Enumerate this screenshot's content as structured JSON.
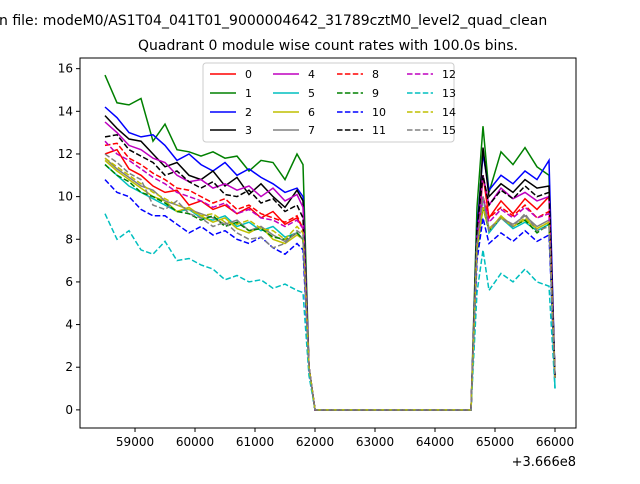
{
  "suptitle": "n file: modeM0/AS1T04_041T01_9000004642_31789cztM0_level2_quad_clean",
  "chart_data": {
    "type": "line",
    "title": "Quadrant 0 module wise count rates with 100.0s bins.",
    "xlabel": "",
    "ylabel": "",
    "x_offset_label": "+3.666e8",
    "xlim": [
      58083,
      66350
    ],
    "ylim": [
      -0.85,
      16.5
    ],
    "xticks": [
      59000,
      60000,
      61000,
      62000,
      63000,
      64000,
      65000,
      66000
    ],
    "yticks": [
      0,
      2,
      4,
      6,
      8,
      10,
      12,
      14,
      16
    ],
    "legend_placement": "top-center",
    "x": [
      58500,
      58700,
      58900,
      59100,
      59300,
      59500,
      59700,
      59900,
      60100,
      60300,
      60500,
      60700,
      60900,
      61100,
      61300,
      61500,
      61700,
      61800,
      61900,
      62000,
      64600,
      64700,
      64800,
      64900,
      65100,
      65300,
      65500,
      65700,
      65900,
      66000
    ],
    "series": [
      {
        "name": "0",
        "color": "#ff0000",
        "dash": false,
        "values": [
          12.0,
          12.2,
          11.3,
          11.0,
          10.5,
          10.2,
          10.3,
          9.6,
          9.8,
          9.4,
          9.6,
          9.2,
          9.5,
          9.0,
          9.3,
          8.7,
          9.0,
          8.5,
          2.0,
          0,
          0,
          7.5,
          11.0,
          9.0,
          9.8,
          9.2,
          9.9,
          9.4,
          10.0,
          1.5
        ]
      },
      {
        "name": "1",
        "color": "#008000",
        "dash": false,
        "values": [
          15.7,
          14.4,
          14.3,
          14.6,
          12.6,
          13.4,
          12.2,
          12.1,
          11.9,
          12.1,
          11.8,
          11.9,
          11.2,
          11.7,
          11.6,
          10.8,
          12.0,
          11.5,
          2.0,
          0,
          0,
          9.5,
          13.3,
          10.2,
          12.1,
          11.5,
          12.3,
          11.4,
          11.0,
          1.5
        ]
      },
      {
        "name": "2",
        "color": "#0000ff",
        "dash": false,
        "values": [
          14.2,
          13.7,
          13.0,
          12.8,
          12.9,
          12.4,
          11.7,
          12.0,
          11.5,
          11.2,
          11.6,
          11.0,
          11.3,
          10.9,
          10.6,
          10.2,
          10.4,
          10.0,
          2.0,
          0,
          0,
          8.5,
          12.0,
          10.3,
          11.0,
          10.6,
          11.2,
          10.8,
          11.7,
          1.5
        ]
      },
      {
        "name": "3",
        "color": "#000000",
        "dash": false,
        "values": [
          13.8,
          13.2,
          12.7,
          12.6,
          12.0,
          11.4,
          11.6,
          11.0,
          10.8,
          11.2,
          10.5,
          10.9,
          10.1,
          10.6,
          10.0,
          9.5,
          10.3,
          9.8,
          2.0,
          0,
          0,
          8.0,
          12.3,
          10.0,
          10.6,
          10.2,
          10.8,
          10.4,
          10.5,
          1.5
        ]
      },
      {
        "name": "4",
        "color": "#bf00bf",
        "dash": false,
        "values": [
          13.5,
          13.0,
          12.4,
          12.2,
          11.8,
          11.6,
          11.0,
          10.7,
          10.8,
          10.4,
          10.6,
          10.3,
          10.5,
          10.0,
          10.4,
          9.8,
          10.1,
          9.5,
          2.0,
          0,
          0,
          8.0,
          11.0,
          9.6,
          10.4,
          9.9,
          10.2,
          9.8,
          10.0,
          1.5
        ]
      },
      {
        "name": "5",
        "color": "#00bfbf",
        "dash": false,
        "values": [
          11.5,
          11.0,
          10.5,
          10.2,
          9.9,
          9.6,
          9.3,
          9.4,
          9.0,
          8.9,
          9.1,
          8.6,
          8.8,
          8.4,
          8.6,
          8.1,
          8.3,
          8.0,
          2.0,
          0,
          0,
          7.5,
          10.0,
          8.3,
          9.0,
          8.5,
          8.8,
          8.4,
          8.7,
          1.0
        ]
      },
      {
        "name": "6",
        "color": "#bfbf00",
        "dash": false,
        "values": [
          11.7,
          11.2,
          10.8,
          10.4,
          10.0,
          9.8,
          9.3,
          9.5,
          9.1,
          8.8,
          9.0,
          8.5,
          8.3,
          8.6,
          8.0,
          7.8,
          8.2,
          8.0,
          2.0,
          0,
          0,
          7.5,
          9.5,
          8.4,
          9.1,
          8.6,
          8.9,
          8.5,
          8.8,
          1.5
        ]
      },
      {
        "name": "7",
        "color": "#808080",
        "dash": false,
        "values": [
          11.8,
          11.3,
          10.9,
          10.5,
          10.3,
          9.8,
          9.6,
          9.4,
          9.2,
          9.0,
          8.7,
          8.9,
          8.4,
          8.6,
          8.2,
          7.9,
          8.3,
          8.0,
          2.0,
          0,
          0,
          7.8,
          10.0,
          8.5,
          9.0,
          8.7,
          9.1,
          8.6,
          8.9,
          1.5
        ]
      },
      {
        "name": "8",
        "color": "#ff0000",
        "dash": true,
        "values": [
          12.4,
          12.5,
          11.8,
          11.5,
          11.1,
          10.8,
          10.4,
          10.3,
          10.0,
          9.7,
          9.9,
          9.4,
          9.6,
          9.2,
          9.0,
          8.8,
          9.1,
          8.5,
          2.0,
          0,
          0,
          7.8,
          10.0,
          9.0,
          9.5,
          9.1,
          9.6,
          9.0,
          9.3,
          1.5
        ]
      },
      {
        "name": "9",
        "color": "#008000",
        "dash": true,
        "values": [
          11.5,
          11.0,
          10.7,
          10.2,
          10.0,
          9.7,
          9.3,
          9.2,
          8.9,
          9.1,
          8.6,
          8.8,
          8.4,
          8.5,
          8.1,
          8.0,
          8.3,
          8.0,
          2.0,
          0,
          0,
          7.4,
          9.5,
          8.4,
          9.0,
          8.6,
          8.9,
          8.3,
          8.7,
          1.5
        ]
      },
      {
        "name": "10",
        "color": "#0000ff",
        "dash": true,
        "values": [
          10.8,
          10.2,
          10.0,
          9.4,
          9.1,
          9.1,
          8.7,
          8.3,
          8.6,
          8.2,
          8.4,
          8.0,
          7.8,
          8.1,
          7.6,
          7.3,
          7.8,
          7.5,
          1.8,
          0,
          0,
          7.0,
          9.0,
          7.8,
          8.3,
          7.9,
          8.4,
          7.9,
          8.2,
          1.5
        ]
      },
      {
        "name": "11",
        "color": "#000000",
        "dash": true,
        "values": [
          12.8,
          12.9,
          12.2,
          11.9,
          11.6,
          11.0,
          11.2,
          10.7,
          10.4,
          10.7,
          10.1,
          10.0,
          10.3,
          9.7,
          9.9,
          9.3,
          9.6,
          9.0,
          2.0,
          0,
          0,
          8.5,
          11.0,
          9.6,
          10.3,
          9.9,
          10.5,
          10.0,
          10.2,
          1.5
        ]
      },
      {
        "name": "12",
        "color": "#bf00bf",
        "dash": true,
        "values": [
          12.6,
          12.0,
          11.7,
          11.3,
          10.9,
          10.6,
          10.2,
          10.0,
          9.8,
          9.5,
          9.7,
          9.2,
          9.4,
          9.0,
          8.9,
          8.6,
          8.9,
          8.5,
          2.0,
          0,
          0,
          7.8,
          10.0,
          8.8,
          9.4,
          9.0,
          9.5,
          9.0,
          9.2,
          1.5
        ]
      },
      {
        "name": "13",
        "color": "#00bfbf",
        "dash": true,
        "values": [
          9.2,
          8.0,
          8.4,
          7.5,
          7.3,
          7.9,
          7.0,
          7.1,
          6.8,
          6.6,
          6.1,
          6.3,
          6.0,
          6.1,
          5.7,
          5.9,
          5.6,
          5.5,
          1.6,
          0,
          0,
          5.5,
          7.5,
          5.6,
          6.4,
          6.0,
          6.6,
          6.0,
          5.8,
          1.0
        ]
      },
      {
        "name": "14",
        "color": "#bfbf00",
        "dash": true,
        "values": [
          11.8,
          11.4,
          11.0,
          10.6,
          10.2,
          9.9,
          9.6,
          9.4,
          9.1,
          9.2,
          8.8,
          8.7,
          8.9,
          8.5,
          8.4,
          8.0,
          8.6,
          8.3,
          2.0,
          0,
          0,
          7.6,
          9.5,
          8.5,
          9.0,
          8.6,
          9.0,
          8.5,
          8.8,
          1.5
        ]
      },
      {
        "name": "15",
        "color": "#808080",
        "dash": true,
        "values": [
          12.0,
          11.6,
          11.1,
          10.8,
          9.6,
          9.4,
          9.8,
          9.2,
          9.0,
          8.6,
          8.8,
          8.3,
          8.0,
          8.1,
          7.6,
          7.8,
          8.4,
          8.2,
          2.0,
          0,
          0,
          7.8,
          10.0,
          8.4,
          9.0,
          8.6,
          9.2,
          8.4,
          8.6,
          1.5
        ]
      }
    ]
  }
}
